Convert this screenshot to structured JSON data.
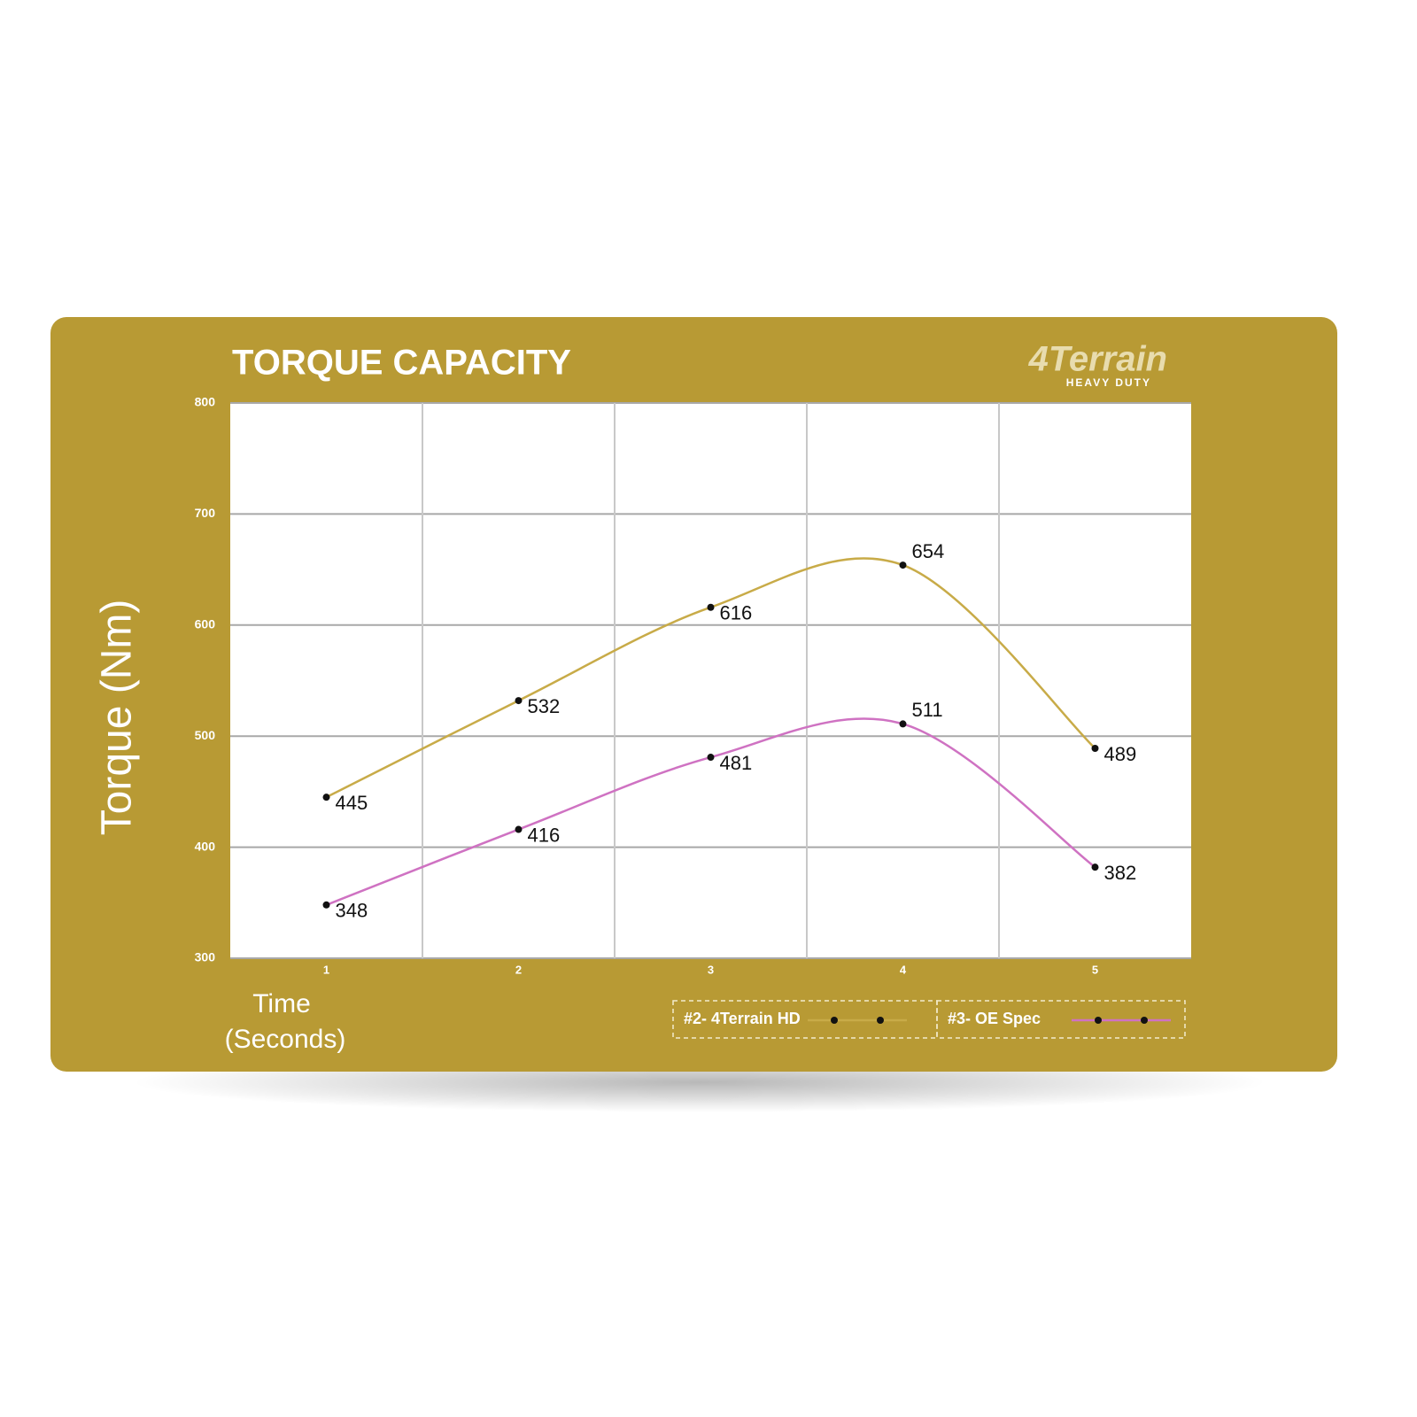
{
  "chart_data": {
    "type": "line",
    "title": "TORQUE CAPACITY",
    "logo": {
      "name": "4Terrain",
      "tagline": "HEAVY DUTY"
    },
    "y_label": "Torque (Nm)",
    "x_label": [
      "Time",
      "(Seconds)"
    ],
    "categories": [
      "1",
      "2",
      "3",
      "4",
      "5"
    ],
    "series": [
      {
        "name": "#2- 4Terrain HD",
        "color": "#c8ab48",
        "values": [
          445,
          532,
          616,
          654,
          489
        ]
      },
      {
        "name": "#3- OE Spec",
        "color": "#cf72c2",
        "values": [
          348,
          416,
          481,
          511,
          382
        ]
      }
    ],
    "ylim": [
      300,
      800
    ],
    "yticks": [
      300,
      400,
      500,
      600,
      700,
      800
    ],
    "grid": true
  }
}
